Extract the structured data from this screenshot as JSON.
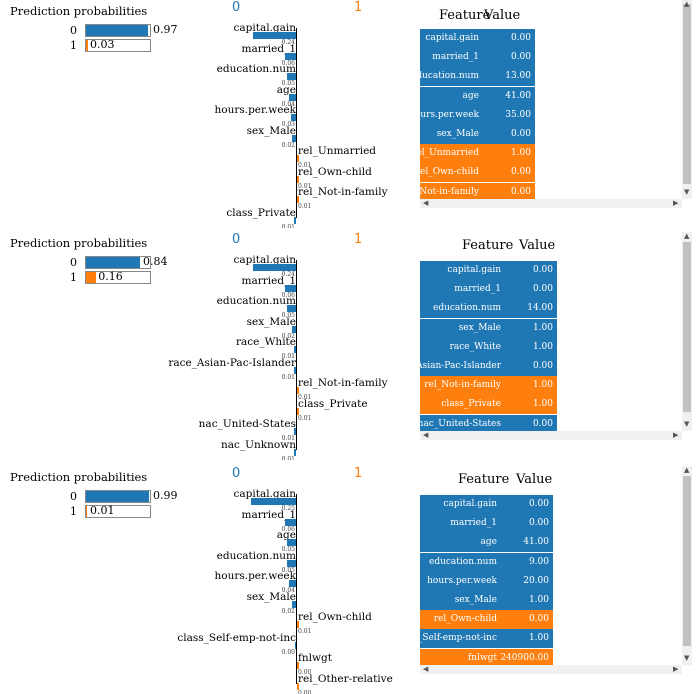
{
  "colors": {
    "blue": "#1f77b4",
    "orange": "#ff7f0e"
  },
  "panels": [
    {
      "title": "Prediction probabilities",
      "probs": [
        {
          "cls": "0",
          "value": 0.97,
          "label": "0.97"
        },
        {
          "cls": "1",
          "value": 0.03,
          "label": "0.03"
        }
      ],
      "class_labels": [
        "0",
        "1"
      ],
      "features": [
        {
          "name": "capital.gain",
          "weight": "0.24",
          "w": 0.24,
          "side": "neg"
        },
        {
          "name": "married_1",
          "weight": "0.06",
          "w": 0.06,
          "side": "neg"
        },
        {
          "name": "education.num",
          "weight": "0.05",
          "w": 0.05,
          "side": "neg"
        },
        {
          "name": "age",
          "weight": "0.04",
          "w": 0.04,
          "side": "neg"
        },
        {
          "name": "hours.per.week",
          "weight": "0.03",
          "w": 0.03,
          "side": "neg"
        },
        {
          "name": "sex_Male",
          "weight": "0.02",
          "w": 0.02,
          "side": "neg"
        },
        {
          "name": "rel_Unmarried",
          "weight": "0.01",
          "w": 0.01,
          "side": "pos"
        },
        {
          "name": "rel_Own-child",
          "weight": "0.01",
          "w": 0.01,
          "side": "pos"
        },
        {
          "name": "rel_Not-in-family",
          "weight": "0.01",
          "w": 0.01,
          "side": "pos"
        },
        {
          "name": "class_Private",
          "weight": "0.01",
          "w": 0.01,
          "side": "neg"
        }
      ],
      "table_header": {
        "feature": "Feature",
        "value": "Value"
      },
      "table": [
        {
          "f": "capital.gain",
          "v": "0.00",
          "c": "blue"
        },
        {
          "f": "married_1",
          "v": "0.00",
          "c": "blue"
        },
        {
          "f": "education.num",
          "v": "13.00",
          "c": "blue"
        },
        {
          "f": "age",
          "v": "41.00",
          "c": "blue"
        },
        {
          "f": "hours.per.week",
          "v": "35.00",
          "c": "blue"
        },
        {
          "f": "sex_Male",
          "v": "0.00",
          "c": "blue"
        },
        {
          "f": "rel_Unmarried",
          "v": "1.00",
          "c": "orange"
        },
        {
          "f": "rel_Own-child",
          "v": "0.00",
          "c": "orange"
        },
        {
          "f": "rel_Not-in-family",
          "v": "0.00",
          "c": "orange"
        }
      ]
    },
    {
      "title": "Prediction probabilities",
      "probs": [
        {
          "cls": "0",
          "value": 0.84,
          "label": "0.84"
        },
        {
          "cls": "1",
          "value": 0.16,
          "label": "0.16"
        }
      ],
      "class_labels": [
        "0",
        "1"
      ],
      "features": [
        {
          "name": "capital.gain",
          "weight": "0.24",
          "w": 0.24,
          "side": "neg"
        },
        {
          "name": "married_1",
          "weight": "0.06",
          "w": 0.06,
          "side": "neg"
        },
        {
          "name": "education.num",
          "weight": "0.05",
          "w": 0.05,
          "side": "neg"
        },
        {
          "name": "sex_Male",
          "weight": "0.02",
          "w": 0.02,
          "side": "neg"
        },
        {
          "name": "race_White",
          "weight": "0.01",
          "w": 0.01,
          "side": "neg"
        },
        {
          "name": "race_Asian-Pac-Islander",
          "weight": "0.01",
          "w": 0.01,
          "side": "neg"
        },
        {
          "name": "rel_Not-in-family",
          "weight": "0.01",
          "w": 0.01,
          "side": "pos"
        },
        {
          "name": "class_Private",
          "weight": "0.01",
          "w": 0.01,
          "side": "pos"
        },
        {
          "name": "nac_United-States",
          "weight": "0.01",
          "w": 0.01,
          "side": "neg"
        },
        {
          "name": "nac_Unknown",
          "weight": "0.01",
          "w": 0.01,
          "side": "neg"
        }
      ],
      "table_header": {
        "feature": "Feature",
        "value": "Value"
      },
      "table": [
        {
          "f": "capital.gain",
          "v": "0.00",
          "c": "blue"
        },
        {
          "f": "married_1",
          "v": "0.00",
          "c": "blue"
        },
        {
          "f": "education.num",
          "v": "14.00",
          "c": "blue"
        },
        {
          "f": "sex_Male",
          "v": "1.00",
          "c": "blue"
        },
        {
          "f": "race_White",
          "v": "1.00",
          "c": "blue"
        },
        {
          "f": "race_Asian-Pac-Islander",
          "v": "0.00",
          "c": "blue"
        },
        {
          "f": "rel_Not-in-family",
          "v": "1.00",
          "c": "orange"
        },
        {
          "f": "class_Private",
          "v": "1.00",
          "c": "orange"
        },
        {
          "f": "nac_United-States",
          "v": "0.00",
          "c": "blue"
        }
      ]
    },
    {
      "title": "Prediction probabilities",
      "probs": [
        {
          "cls": "0",
          "value": 0.99,
          "label": "0.99"
        },
        {
          "cls": "1",
          "value": 0.01,
          "label": "0.01"
        }
      ],
      "class_labels": [
        "0",
        "1"
      ],
      "features": [
        {
          "name": "capital.gain",
          "weight": "0.25",
          "w": 0.25,
          "side": "neg"
        },
        {
          "name": "married_1",
          "weight": "0.06",
          "w": 0.06,
          "side": "neg"
        },
        {
          "name": "age",
          "weight": "0.05",
          "w": 0.05,
          "side": "neg"
        },
        {
          "name": "education.num",
          "weight": "0.05",
          "w": 0.05,
          "side": "neg"
        },
        {
          "name": "hours.per.week",
          "weight": "0.04",
          "w": 0.04,
          "side": "neg"
        },
        {
          "name": "sex_Male",
          "weight": "0.02",
          "w": 0.02,
          "side": "neg"
        },
        {
          "name": "rel_Own-child",
          "weight": "0.01",
          "w": 0.01,
          "side": "pos"
        },
        {
          "name": "class_Self-emp-not-inc",
          "weight": "0.00",
          "w": 0.004,
          "side": "neg"
        },
        {
          "name": "fnlwgt",
          "weight": "0.00",
          "w": 0.004,
          "side": "pos"
        },
        {
          "name": "rel_Other-relative",
          "weight": "0.00",
          "w": 0.004,
          "side": "pos"
        }
      ],
      "table_header": {
        "feature": "Feature",
        "value": "Value"
      },
      "table": [
        {
          "f": "capital.gain",
          "v": "0.00",
          "c": "blue"
        },
        {
          "f": "married_1",
          "v": "0.00",
          "c": "blue"
        },
        {
          "f": "age",
          "v": "41.00",
          "c": "blue"
        },
        {
          "f": "education.num",
          "v": "9.00",
          "c": "blue"
        },
        {
          "f": "hours.per.week",
          "v": "20.00",
          "c": "blue"
        },
        {
          "f": "sex_Male",
          "v": "1.00",
          "c": "blue"
        },
        {
          "f": "rel_Own-child",
          "v": "0.00",
          "c": "orange"
        },
        {
          "f": "class_Self-emp-not-inc",
          "v": "1.00",
          "c": "blue"
        },
        {
          "f": "fnlwgt",
          "v": "240900.00",
          "c": "orange"
        }
      ]
    }
  ]
}
